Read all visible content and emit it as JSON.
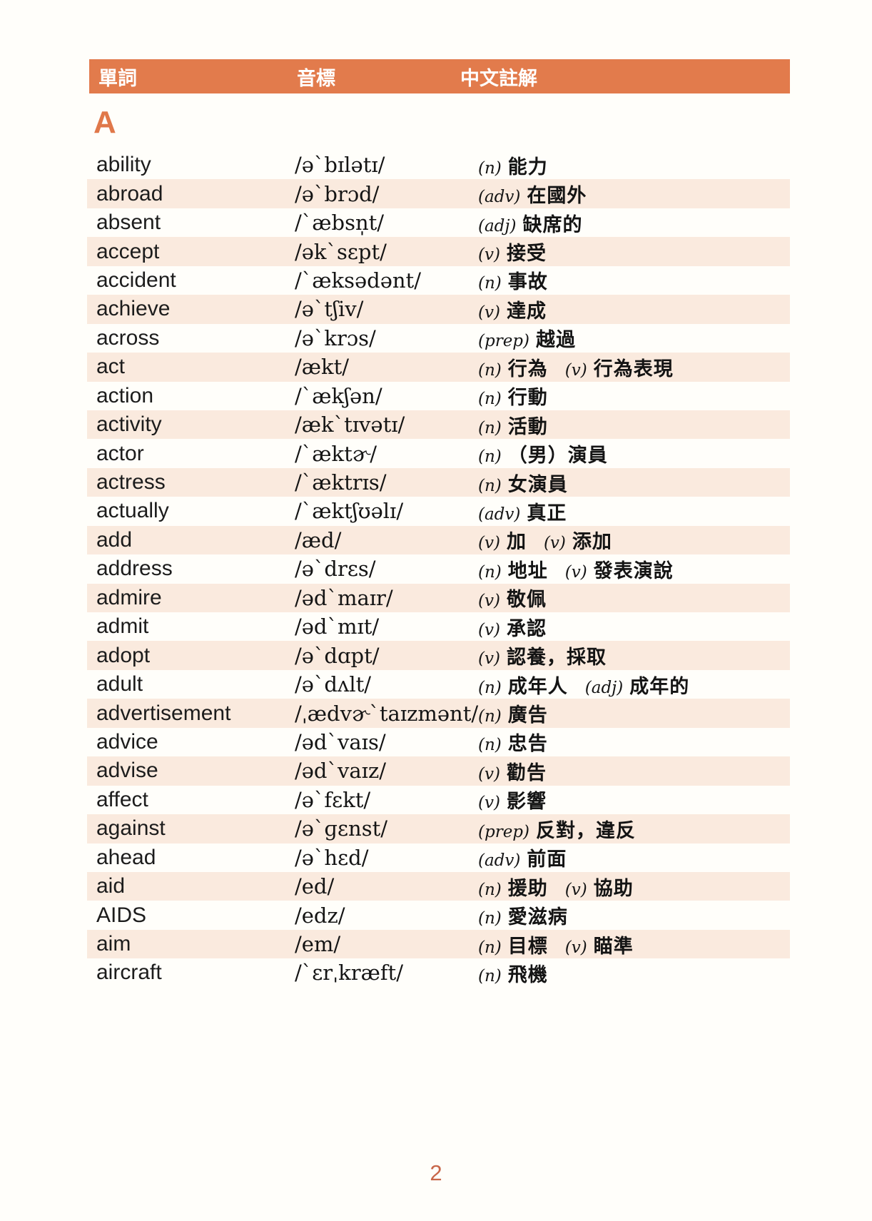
{
  "colors": {
    "header_bg": "#E27B4C",
    "stripe": "#FAEADE",
    "accent": "#E0784A",
    "page_number_color": "#C8674A"
  },
  "header": {
    "col_word": "單詞",
    "col_phonetic": "音標",
    "col_chinese": "中文註解"
  },
  "section_letter": "A",
  "page": {
    "number": "2"
  },
  "table": {
    "rows": [
      {
        "word": "ability",
        "phonetic": "/ə`bɪlətɪ/",
        "senses": [
          {
            "pos": "(n)",
            "zh": "能力"
          }
        ]
      },
      {
        "word": "abroad",
        "phonetic": "/ə`brɔd/",
        "senses": [
          {
            "pos": "(adv)",
            "zh": "在國外"
          }
        ]
      },
      {
        "word": "absent",
        "phonetic": "/`æbsn̩t/",
        "senses": [
          {
            "pos": "(adj)",
            "zh": "缺席的"
          }
        ]
      },
      {
        "word": "accept",
        "phonetic": "/ək`sɛpt/",
        "senses": [
          {
            "pos": "(v)",
            "zh": "接受"
          }
        ]
      },
      {
        "word": "accident",
        "phonetic": "/`æksədənt/",
        "senses": [
          {
            "pos": "(n)",
            "zh": "事故"
          }
        ]
      },
      {
        "word": "achieve",
        "phonetic": "/ə`tʃiv/",
        "senses": [
          {
            "pos": "(v)",
            "zh": "達成"
          }
        ]
      },
      {
        "word": "across",
        "phonetic": "/ə`krɔs/",
        "senses": [
          {
            "pos": "(prep)",
            "zh": "越過"
          }
        ]
      },
      {
        "word": "act",
        "phonetic": "/ækt/",
        "senses": [
          {
            "pos": "(n)",
            "zh": "行為"
          },
          {
            "pos": "(v)",
            "zh": "行為表現"
          }
        ]
      },
      {
        "word": "action",
        "phonetic": "/`ækʃən/",
        "senses": [
          {
            "pos": "(n)",
            "zh": "行動"
          }
        ]
      },
      {
        "word": "activity",
        "phonetic": "/æk`tɪvətɪ/",
        "senses": [
          {
            "pos": "(n)",
            "zh": "活動"
          }
        ]
      },
      {
        "word": "actor",
        "phonetic": "/`æktɚ/",
        "senses": [
          {
            "pos": "(n)",
            "zh": "（男）演員"
          }
        ]
      },
      {
        "word": "actress",
        "phonetic": "/`æktrɪs/",
        "senses": [
          {
            "pos": "(n)",
            "zh": "女演員"
          }
        ]
      },
      {
        "word": "actually",
        "phonetic": "/`æktʃʊəlɪ/",
        "senses": [
          {
            "pos": "(adv)",
            "zh": "真正"
          }
        ]
      },
      {
        "word": "add",
        "phonetic": "/æd/",
        "senses": [
          {
            "pos": "(v)",
            "zh": "加"
          },
          {
            "pos": "(v)",
            "zh": "添加"
          }
        ]
      },
      {
        "word": "address",
        "phonetic": "/ə`drɛs/",
        "senses": [
          {
            "pos": "(n)",
            "zh": "地址"
          },
          {
            "pos": "(v)",
            "zh": "發表演說"
          }
        ]
      },
      {
        "word": "admire",
        "phonetic": "/əd`maɪr/",
        "senses": [
          {
            "pos": "(v)",
            "zh": "敬佩"
          }
        ]
      },
      {
        "word": "admit",
        "phonetic": "/əd`mɪt/",
        "senses": [
          {
            "pos": "(v)",
            "zh": "承認"
          }
        ]
      },
      {
        "word": "adopt",
        "phonetic": "/ə`dɑpt/",
        "senses": [
          {
            "pos": "(v)",
            "zh": "認養，採取"
          }
        ]
      },
      {
        "word": "adult",
        "phonetic": "/ə`dʌlt/",
        "senses": [
          {
            "pos": "(n)",
            "zh": "成年人"
          },
          {
            "pos": "(adj)",
            "zh": "成年的"
          }
        ]
      },
      {
        "word": "advertisement",
        "phonetic": "/ˌædvɚ`taɪzmənt/",
        "senses": [
          {
            "pos": "(n)",
            "zh": "廣告"
          }
        ]
      },
      {
        "word": "advice",
        "phonetic": "/əd`vaɪs/",
        "senses": [
          {
            "pos": "(n)",
            "zh": "忠告"
          }
        ]
      },
      {
        "word": "advise",
        "phonetic": "/əd`vaɪz/",
        "senses": [
          {
            "pos": "(v)",
            "zh": "勸告"
          }
        ]
      },
      {
        "word": "affect",
        "phonetic": "/ə`fɛkt/",
        "senses": [
          {
            "pos": "(v)",
            "zh": "影響"
          }
        ]
      },
      {
        "word": "against",
        "phonetic": "/ə`ɡɛnst/",
        "senses": [
          {
            "pos": "(prep)",
            "zh": "反對，違反"
          }
        ]
      },
      {
        "word": "ahead",
        "phonetic": "/ə`hɛd/",
        "senses": [
          {
            "pos": "(adv)",
            "zh": "前面"
          }
        ]
      },
      {
        "word": "aid",
        "phonetic": "/ed/",
        "senses": [
          {
            "pos": "(n)",
            "zh": "援助"
          },
          {
            "pos": "(v)",
            "zh": "協助"
          }
        ]
      },
      {
        "word": "AIDS",
        "phonetic": "/edz/",
        "senses": [
          {
            "pos": "(n)",
            "zh": "愛滋病"
          }
        ]
      },
      {
        "word": "aim",
        "phonetic": "/em/",
        "senses": [
          {
            "pos": "(n)",
            "zh": "目標"
          },
          {
            "pos": "(v)",
            "zh": "瞄準"
          }
        ]
      },
      {
        "word": "aircraft",
        "phonetic": "/`ɛrˌkræft/",
        "senses": [
          {
            "pos": "(n)",
            "zh": "飛機"
          }
        ]
      }
    ]
  }
}
